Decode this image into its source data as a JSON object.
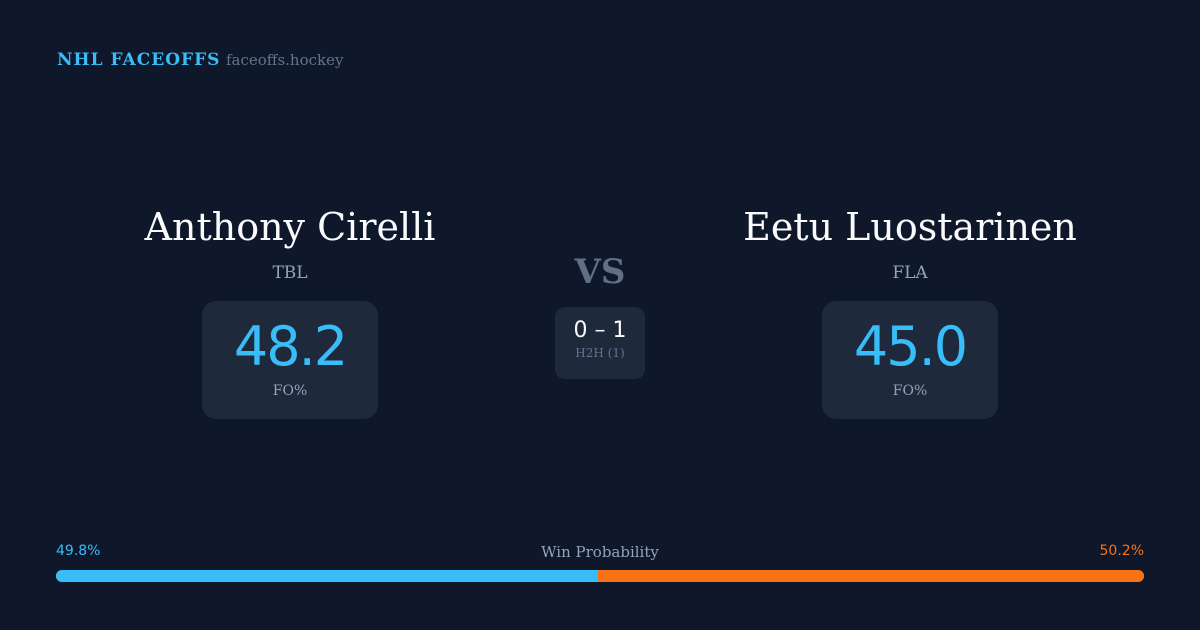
{
  "header": {
    "brand": "NHL FACEOFFS",
    "site": "faceoffs.hockey"
  },
  "players": [
    {
      "name": "Anthony Cirelli",
      "team": "TBL",
      "fo_pct": "48.2",
      "fo_label": "FO%"
    },
    {
      "name": "Eetu Luostarinen",
      "team": "FLA",
      "fo_pct": "45.0",
      "fo_label": "FO%"
    }
  ],
  "vs": "VS",
  "h2h": {
    "score": "0 – 1",
    "label": "H2H (1)"
  },
  "win_probability": {
    "label": "Win Probability",
    "left": "49.8%",
    "right": "50.2%",
    "left_value": 49.8,
    "right_value": 50.2,
    "left_color": "#38bdf8",
    "right_color": "#f97316"
  }
}
